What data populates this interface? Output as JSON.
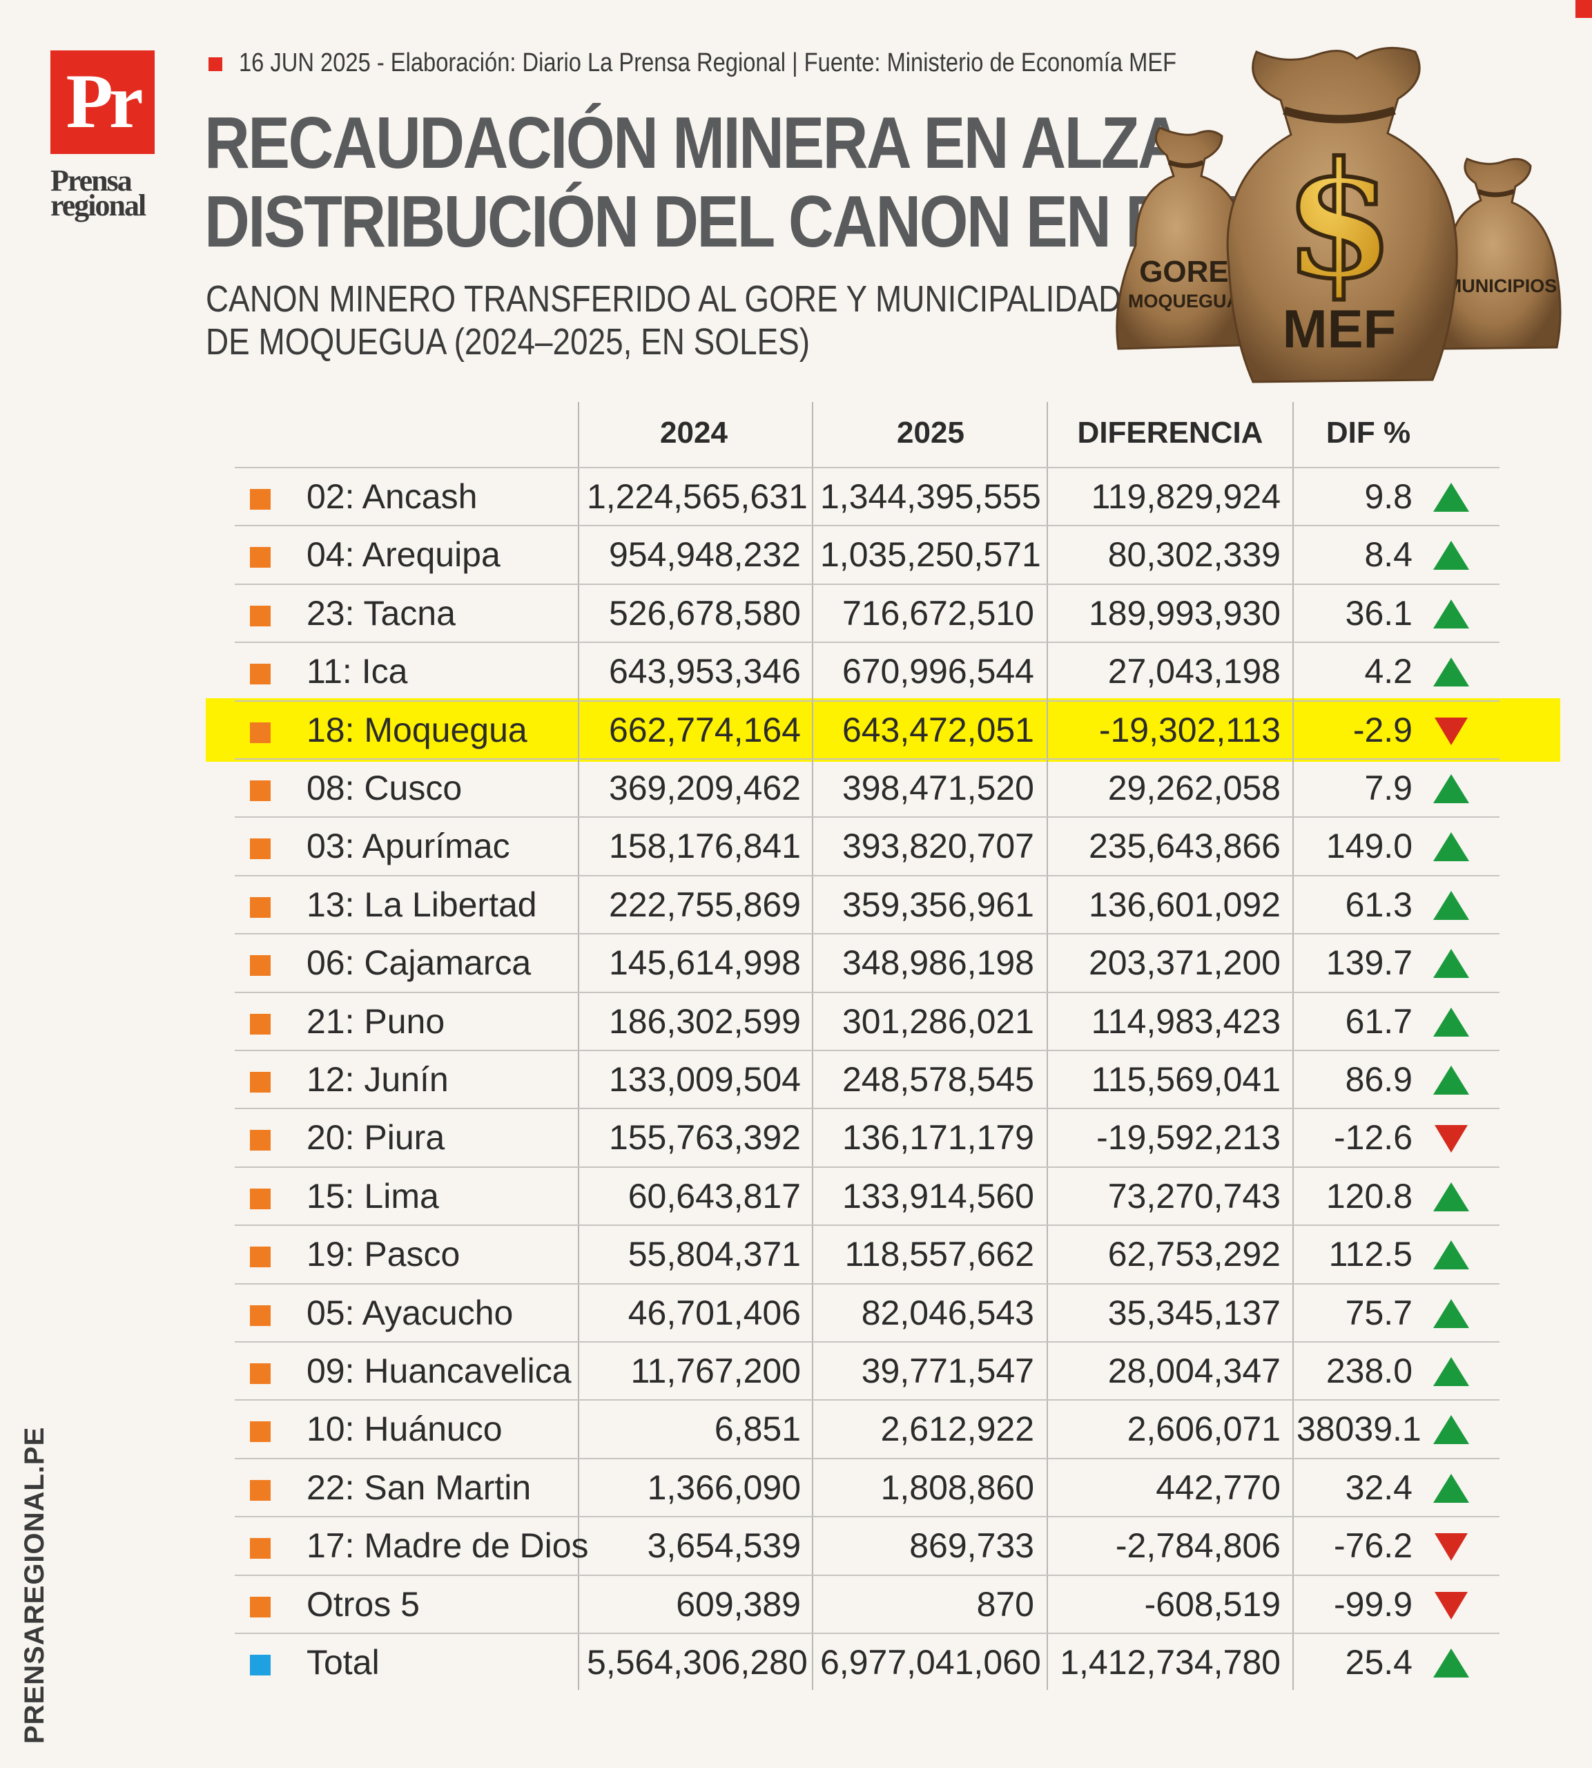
{
  "header": {
    "logo_text": "Pr",
    "brand_line1": "Prensa",
    "brand_line2": "regional",
    "source": "16 JUN 2025 -  Elaboración: Diario La Prensa Regional | Fuente: Ministerio de Economía MEF",
    "title_line1": "RECAUDACIÓN MINERA EN ALZA,",
    "title_line2": "DISTRIBUCIÓN DEL CANON EN BAJA",
    "subtitle_line1": "CANON MINERO TRANSFERIDO AL GORE Y MUNICIPALIDADES",
    "subtitle_line2": "DE MOQUEGUA (2024–2025, EN SOLES)",
    "site_url": "PRENSAREGIONAL.PE"
  },
  "illustration": {
    "bag_left_line1": "GORE",
    "bag_left_line2": "MOQUEGUA",
    "bag_center_symbol": "$",
    "bag_center_label": "MEF",
    "bag_right_label": "MUNICIPIOS"
  },
  "colors": {
    "brand_red": "#e32b1f",
    "bullet_orange": "#f07c22",
    "bullet_total": "#1fa0e0",
    "highlight": "#fff200",
    "up": "#1a9a3c",
    "down": "#d62a1e"
  },
  "chart_data": {
    "type": "table",
    "columns": [
      "",
      "2024",
      "2025",
      "DIFERENCIA",
      "DIF %"
    ],
    "highlighted_row": "18: Moquegua",
    "rows": [
      {
        "name": "02: Ancash",
        "v2024": "1,224,565,631",
        "v2025": "1,344,395,555",
        "diff": "119,829,924",
        "pct": "9.8",
        "trend": "up"
      },
      {
        "name": "04: Arequipa",
        "v2024": "954,948,232",
        "v2025": "1,035,250,571",
        "diff": "80,302,339",
        "pct": "8.4",
        "trend": "up"
      },
      {
        "name": "23: Tacna",
        "v2024": "526,678,580",
        "v2025": "716,672,510",
        "diff": "189,993,930",
        "pct": "36.1",
        "trend": "up"
      },
      {
        "name": "11: Ica",
        "v2024": "643,953,346",
        "v2025": "670,996,544",
        "diff": "27,043,198",
        "pct": "4.2",
        "trend": "up"
      },
      {
        "name": "18: Moquegua",
        "v2024": "662,774,164",
        "v2025": "643,472,051",
        "diff": "-19,302,113",
        "pct": "-2.9",
        "trend": "down"
      },
      {
        "name": "08: Cusco",
        "v2024": "369,209,462",
        "v2025": "398,471,520",
        "diff": "29,262,058",
        "pct": "7.9",
        "trend": "up"
      },
      {
        "name": "03: Apurímac",
        "v2024": "158,176,841",
        "v2025": "393,820,707",
        "diff": "235,643,866",
        "pct": "149.0",
        "trend": "up"
      },
      {
        "name": "13: La Libertad",
        "v2024": "222,755,869",
        "v2025": "359,356,961",
        "diff": "136,601,092",
        "pct": "61.3",
        "trend": "up"
      },
      {
        "name": "06: Cajamarca",
        "v2024": "145,614,998",
        "v2025": "348,986,198",
        "diff": "203,371,200",
        "pct": "139.7",
        "trend": "up"
      },
      {
        "name": "21: Puno",
        "v2024": "186,302,599",
        "v2025": "301,286,021",
        "diff": "114,983,423",
        "pct": "61.7",
        "trend": "up"
      },
      {
        "name": "12: Junín",
        "v2024": "133,009,504",
        "v2025": "248,578,545",
        "diff": "115,569,041",
        "pct": "86.9",
        "trend": "up"
      },
      {
        "name": "20: Piura",
        "v2024": "155,763,392",
        "v2025": "136,171,179",
        "diff": "-19,592,213",
        "pct": "-12.6",
        "trend": "down"
      },
      {
        "name": "15: Lima",
        "v2024": "60,643,817",
        "v2025": "133,914,560",
        "diff": "73,270,743",
        "pct": "120.8",
        "trend": "up"
      },
      {
        "name": "19: Pasco",
        "v2024": "55,804,371",
        "v2025": "118,557,662",
        "diff": "62,753,292",
        "pct": "112.5",
        "trend": "up"
      },
      {
        "name": "05: Ayacucho",
        "v2024": "46,701,406",
        "v2025": "82,046,543",
        "diff": "35,345,137",
        "pct": "75.7",
        "trend": "up"
      },
      {
        "name": "09: Huancavelica",
        "v2024": "11,767,200",
        "v2025": "39,771,547",
        "diff": "28,004,347",
        "pct": "238.0",
        "trend": "up"
      },
      {
        "name": "10: Huánuco",
        "v2024": "6,851",
        "v2025": "2,612,922",
        "diff": "2,606,071",
        "pct": "38039.1",
        "trend": "up"
      },
      {
        "name": "22: San Martin",
        "v2024": "1,366,090",
        "v2025": "1,808,860",
        "diff": "442,770",
        "pct": "32.4",
        "trend": "up"
      },
      {
        "name": "17: Madre de Dios",
        "v2024": "3,654,539",
        "v2025": "869,733",
        "diff": "-2,784,806",
        "pct": "-76.2",
        "trend": "down"
      },
      {
        "name": "Otros 5",
        "v2024": "609,389",
        "v2025": "870",
        "diff": "-608,519",
        "pct": "-99.9",
        "trend": "down"
      },
      {
        "name": "Total",
        "v2024": "5,564,306,280",
        "v2025": "6,977,041,060",
        "diff": "1,412,734,780",
        "pct": "25.4",
        "trend": "up",
        "is_total": true
      }
    ]
  }
}
